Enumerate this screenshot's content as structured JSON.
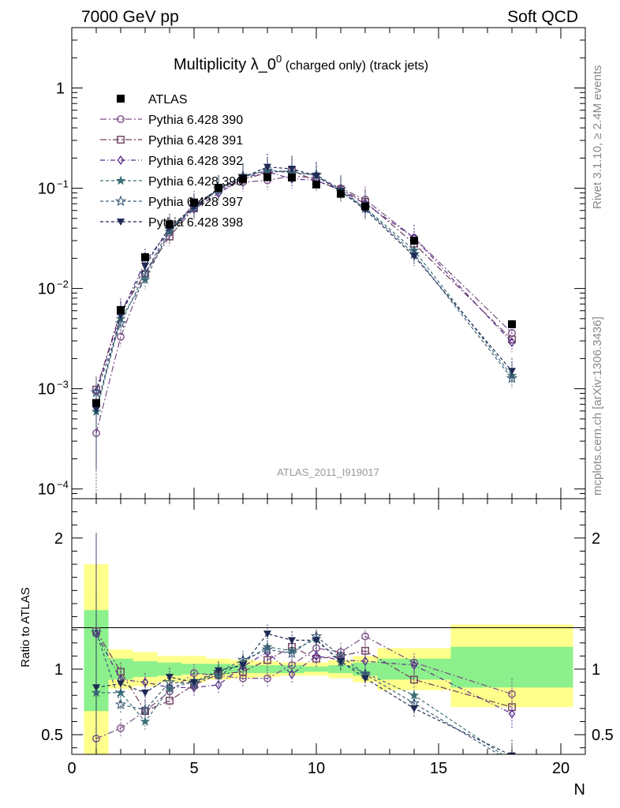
{
  "header": {
    "left": "7000 GeV pp",
    "right": "Soft QCD"
  },
  "side_labels": {
    "rivet": "Rivet 3.1.10, ≥ 2.4M events",
    "mcplots": "mcplots.cern.ch [arXiv:1306.3436]"
  },
  "colors": {
    "data": "#000000",
    "p390": "#7a4e84",
    "p391": "#6e3d5e",
    "p392": "#552a8c",
    "p396": "#3d6f77",
    "p397": "#3e5c78",
    "p398": "#1f2a55",
    "band_outer": "#ffff8c",
    "band_inner": "#8cf08c"
  },
  "chart_data": [
    {
      "type": "scatter",
      "title_main": "Multiplicity λ_0",
      "title_sup": "0",
      "title_suffix": " (charged only) (track jets)",
      "analysis_id": "ATLAS_2011_I919017",
      "yscale": "log",
      "xlim": [
        0,
        21
      ],
      "ylim": [
        8e-05,
        4
      ],
      "y_ticks": [
        {
          "value": 1,
          "label": "1"
        },
        {
          "value": 0.1,
          "label": "10",
          "exp": "−1"
        },
        {
          "value": 0.01,
          "label": "10",
          "exp": "−2"
        },
        {
          "value": 0.001,
          "label": "10",
          "exp": "−3"
        },
        {
          "value": 0.0001,
          "label": "10",
          "exp": "−4"
        }
      ],
      "x": [
        1,
        2,
        3,
        4,
        5,
        6,
        7,
        8,
        9,
        10,
        11,
        12,
        14,
        18
      ],
      "series": [
        {
          "name": "ATLAS",
          "key": "data",
          "marker": "filled-square",
          "values": [
            0.00072,
            0.0061,
            0.0205,
            0.0435,
            0.072,
            0.101,
            0.124,
            0.129,
            0.128,
            0.109,
            0.088,
            0.066,
            0.03,
            0.0044
          ]
        },
        {
          "name": "Pythia 6.428 390",
          "key": "p390",
          "marker": "open-circle",
          "dash": "8,3,2,3",
          "values": [
            0.00036,
            0.0033,
            0.0139,
            0.036,
            0.07,
            0.096,
            0.115,
            0.12,
            0.132,
            0.127,
            0.1,
            0.077,
            0.032,
            0.0036
          ]
        },
        {
          "name": "Pythia 6.428 391",
          "key": "p391",
          "marker": "open-square",
          "dash": "8,3,2,3",
          "values": [
            0.00098,
            0.0059,
            0.014,
            0.033,
            0.063,
            0.097,
            0.122,
            0.143,
            0.15,
            0.118,
            0.097,
            0.073,
            0.028,
            0.0031
          ]
        },
        {
          "name": "Pythia 6.428 392",
          "key": "p392",
          "marker": "open-diamond",
          "dash": "6,3,1,3",
          "values": [
            0.00094,
            0.0056,
            0.0185,
            0.038,
            0.062,
            0.089,
            0.126,
            0.146,
            0.124,
            0.12,
            0.095,
            0.07,
            0.032,
            0.0029
          ]
        },
        {
          "name": "Pythia 6.428 396",
          "key": "p396",
          "marker": "star",
          "dash": "4,3",
          "values": [
            0.00059,
            0.005,
            0.0122,
            0.037,
            0.066,
            0.096,
            0.13,
            0.151,
            0.146,
            0.134,
            0.092,
            0.064,
            0.024,
            0.00135
          ]
        },
        {
          "name": "Pythia 6.428 397",
          "key": "p397",
          "marker": "open-star",
          "dash": "4,3",
          "values": [
            0.00092,
            0.0045,
            0.0142,
            0.039,
            0.064,
            0.099,
            0.133,
            0.149,
            0.143,
            0.136,
            0.097,
            0.063,
            0.022,
            0.00127
          ]
        },
        {
          "name": "Pythia 6.428 398",
          "key": "p398",
          "marker": "filled-triangle-down",
          "dash": "4,3",
          "values": [
            0.00062,
            0.0054,
            0.0168,
            0.041,
            0.065,
            0.1,
            0.128,
            0.163,
            0.156,
            0.133,
            0.093,
            0.061,
            0.021,
            0.0015
          ]
        }
      ]
    },
    {
      "type": "scatter",
      "ylabel": "Ratio to ATLAS",
      "xlabel": "N",
      "xlim": [
        0,
        21
      ],
      "ylim": [
        0.35,
        2.3
      ],
      "x_ticks": [
        0,
        5,
        10,
        15,
        20
      ],
      "y_ticks": [
        0.5,
        1,
        2
      ],
      "band_bins": [
        {
          "x0": 0.5,
          "x1": 1.5,
          "outer": [
            0.32,
            1.8
          ],
          "inner": [
            0.68,
            1.45
          ]
        },
        {
          "x0": 1.5,
          "x1": 2.5,
          "outer": [
            0.85,
            1.15
          ],
          "inner": [
            0.92,
            1.08
          ]
        },
        {
          "x0": 2.5,
          "x1": 3.5,
          "outer": [
            0.87,
            1.13
          ],
          "inner": [
            0.94,
            1.06
          ]
        },
        {
          "x0": 3.5,
          "x1": 4.5,
          "outer": [
            0.9,
            1.1
          ],
          "inner": [
            0.95,
            1.05
          ]
        },
        {
          "x0": 4.5,
          "x1": 5.5,
          "outer": [
            0.9,
            1.1
          ],
          "inner": [
            0.96,
            1.04
          ]
        },
        {
          "x0": 5.5,
          "x1": 6.5,
          "outer": [
            0.92,
            1.08
          ],
          "inner": [
            0.96,
            1.04
          ]
        },
        {
          "x0": 6.5,
          "x1": 7.5,
          "outer": [
            0.93,
            1.07
          ],
          "inner": [
            0.97,
            1.03
          ]
        },
        {
          "x0": 7.5,
          "x1": 8.5,
          "outer": [
            0.94,
            1.06
          ],
          "inner": [
            0.97,
            1.03
          ]
        },
        {
          "x0": 8.5,
          "x1": 9.5,
          "outer": [
            0.95,
            1.05
          ],
          "inner": [
            0.97,
            1.03
          ]
        },
        {
          "x0": 9.5,
          "x1": 10.5,
          "outer": [
            0.95,
            1.05
          ],
          "inner": [
            0.98,
            1.02
          ]
        },
        {
          "x0": 10.5,
          "x1": 11.5,
          "outer": [
            0.93,
            1.07
          ],
          "inner": [
            0.97,
            1.03
          ]
        },
        {
          "x0": 11.5,
          "x1": 12.5,
          "outer": [
            0.9,
            1.1
          ],
          "inner": [
            0.95,
            1.05
          ]
        },
        {
          "x0": 12.5,
          "x1": 15.5,
          "outer": [
            0.84,
            1.16
          ],
          "inner": [
            0.92,
            1.08
          ]
        },
        {
          "x0": 15.5,
          "x1": 20.5,
          "outer": [
            0.71,
            1.34
          ],
          "inner": [
            0.86,
            1.17
          ]
        }
      ],
      "series": [
        {
          "name": "Pythia 6.428 390",
          "key": "p390",
          "marker": "open-circle",
          "dash": "8,3,2,3",
          "values": [
            0.47,
            0.55,
            0.68,
            0.83,
            0.97,
            0.95,
            0.93,
            0.93,
            1.03,
            1.16,
            1.13,
            1.25,
            1.05,
            0.81
          ]
        },
        {
          "name": "Pythia 6.428 391",
          "key": "p391",
          "marker": "open-square",
          "dash": "8,3,2,3",
          "values": [
            1.29,
            0.98,
            0.68,
            0.76,
            0.88,
            0.96,
            0.98,
            1.07,
            1.17,
            1.08,
            1.1,
            1.14,
            0.92,
            0.71
          ]
        },
        {
          "name": "Pythia 6.428 392",
          "key": "p392",
          "marker": "open-diamond",
          "dash": "6,3,1,3",
          "values": [
            1.27,
            0.92,
            0.9,
            0.86,
            0.86,
            0.88,
            1.02,
            1.13,
            0.96,
            1.1,
            1.07,
            1.06,
            1.03,
            0.66
          ]
        },
        {
          "name": "Pythia 6.428 396",
          "key": "p396",
          "marker": "star",
          "dash": "4,3",
          "values": [
            0.82,
            0.82,
            0.6,
            0.85,
            0.91,
            0.95,
            1.05,
            1.17,
            1.14,
            1.23,
            1.05,
            0.97,
            0.8,
            0.3
          ]
        },
        {
          "name": "Pythia 6.428 397",
          "key": "p397",
          "marker": "open-star",
          "dash": "4,3",
          "values": [
            1.28,
            0.73,
            0.69,
            0.9,
            0.89,
            0.98,
            1.07,
            1.15,
            1.12,
            1.25,
            1.1,
            0.96,
            0.74,
            0.29
          ]
        },
        {
          "name": "Pythia 6.428 398",
          "key": "p398",
          "marker": "filled-triangle-down",
          "dash": "4,3",
          "values": [
            0.86,
            0.89,
            0.82,
            0.94,
            0.9,
            0.99,
            1.03,
            1.27,
            1.22,
            1.22,
            1.06,
            0.93,
            0.7,
            0.34
          ]
        }
      ]
    }
  ]
}
